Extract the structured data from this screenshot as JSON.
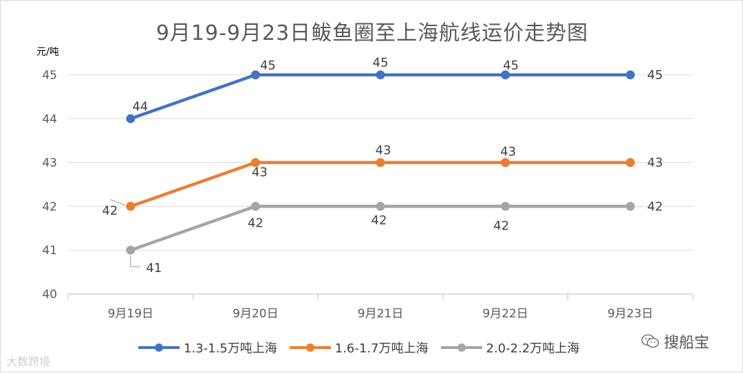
{
  "chart_data": {
    "type": "line",
    "title": "9月19-9月23日鲅鱼圈至上海航线运价走势图",
    "ylabel": "元/吨",
    "xlabel": "",
    "categories": [
      "9月19日",
      "9月20日",
      "9月21日",
      "9月22日",
      "9月23日"
    ],
    "ylim": [
      40,
      45
    ],
    "yticks": [
      40,
      41,
      42,
      43,
      44,
      45
    ],
    "grid": true,
    "legend_position": "bottom",
    "series": [
      {
        "name": "1.3-1.5万吨上海",
        "color": "#4472c4",
        "values": [
          44,
          45,
          45,
          45,
          45
        ],
        "labels": [
          "44",
          "45",
          "45",
          "45",
          "45"
        ]
      },
      {
        "name": "1.6-1.7万吨上海",
        "color": "#ed7d31",
        "values": [
          42,
          43,
          43,
          43,
          43
        ],
        "labels": [
          "42",
          "43",
          "43",
          "43",
          "43"
        ]
      },
      {
        "name": "2.0-2.2万吨上海",
        "color": "#a5a5a5",
        "values": [
          41,
          42,
          42,
          42,
          42
        ],
        "labels": [
          "41",
          "42",
          "42",
          "42",
          "42"
        ]
      }
    ]
  },
  "watermarks": {
    "left": "大数跨境",
    "right": "搜船宝",
    "right_icon": "wechat-icon"
  }
}
